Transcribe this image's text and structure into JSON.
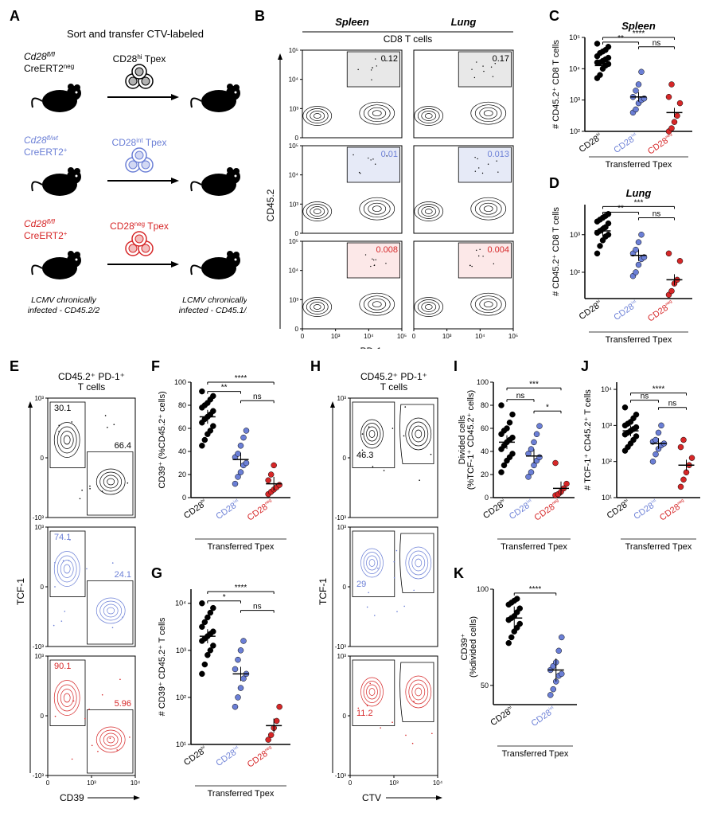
{
  "colors": {
    "black": "#000000",
    "blue": "#6b7fd6",
    "red": "#d62728",
    "grey_fill": "#e8e8e8",
    "blue_fill": "#e6eaf7",
    "red_fill": "#fce8e8",
    "white": "#ffffff"
  },
  "panelA": {
    "title": "Sort and transfer CTV-labeled",
    "rows": [
      {
        "genotype_line1": "Cd28",
        "genotype_sup1": "fl/fl",
        "genotype_line2": "CreERT2",
        "genotype_sup2": "neg",
        "transfer": "CD28",
        "transfer_sup": "hi",
        "transfer_suffix": " Tpex",
        "color": "#000000"
      },
      {
        "genotype_line1": "Cd28",
        "genotype_sup1": "fl/wt",
        "genotype_line2": "CreERT2",
        "genotype_sup2": "+",
        "transfer": "CD28",
        "transfer_sup": "int",
        "transfer_suffix": " Tpex",
        "color": "#6b7fd6"
      },
      {
        "genotype_line1": "Cd28",
        "genotype_sup1": "fl/fl",
        "genotype_line2": "CreERT2",
        "genotype_sup2": "+",
        "transfer": "CD28",
        "transfer_sup": "neg",
        "transfer_suffix": " Tpex",
        "color": "#d62728"
      }
    ],
    "footer_left": "LCMV chronically\ninfected - CD45.2/2",
    "footer_right": "LCMV chronically\ninfected - CD45.1/1"
  },
  "panelB": {
    "col_titles": [
      "Spleen",
      "Lung"
    ],
    "header": "CD8 T cells",
    "y_axis": "CD45.2",
    "x_axis": "PD-1",
    "cells": [
      [
        {
          "value": "0.12",
          "fill": "#e8e8e8",
          "text_color": "#000000"
        },
        {
          "value": "0.17",
          "fill": "#e8e8e8",
          "text_color": "#000000"
        }
      ],
      [
        {
          "value": "0.01",
          "fill": "#e6eaf7",
          "text_color": "#6b7fd6"
        },
        {
          "value": "0.013",
          "fill": "#e6eaf7",
          "text_color": "#6b7fd6"
        }
      ],
      [
        {
          "value": "0.008",
          "fill": "#fce8e8",
          "text_color": "#d62728"
        },
        {
          "value": "0.004",
          "fill": "#fce8e8",
          "text_color": "#d62728"
        }
      ]
    ],
    "x_ticks": [
      "0",
      "10³",
      "10⁴",
      "10⁵"
    ],
    "y_ticks": [
      "0",
      "10³",
      "10⁴",
      "10⁵"
    ]
  },
  "panelC": {
    "title": "Spleen",
    "y_label": "# CD45.2⁺ CD8 T cells",
    "y_ticks": [
      "10²",
      "10³",
      "10⁴",
      "10⁵"
    ],
    "y_scale": "log",
    "ylim": [
      2,
      5
    ],
    "groups": [
      {
        "name": "CD28ʰⁱ",
        "color": "#000000",
        "mean": 4.1,
        "values": [
          3.7,
          3.8,
          4.0,
          4.1,
          4.15,
          4.2,
          4.2,
          4.25,
          4.3,
          4.35,
          4.4,
          4.5,
          4.55,
          4.6,
          4.7,
          4.8
        ]
      },
      {
        "name": "CD28ⁱⁿᵗ",
        "color": "#6b7fd6",
        "mean": 3.1,
        "values": [
          2.6,
          2.7,
          2.9,
          3.0,
          3.05,
          3.1,
          3.3,
          3.5,
          3.9
        ]
      },
      {
        "name": "CD28ⁿᵉᵍ",
        "color": "#d62728",
        "mean": 2.6,
        "values": [
          2.0,
          2.1,
          2.3,
          2.5,
          2.9,
          3.1,
          3.5
        ]
      }
    ],
    "sig": [
      {
        "from": 0,
        "to": 1,
        "label": "**",
        "y": 4.85
      },
      {
        "from": 0,
        "to": 2,
        "label": "****",
        "y": 5.0
      },
      {
        "from": 1,
        "to": 2,
        "label": "ns",
        "y": 4.7
      }
    ],
    "x_axis_title": "Transferred Tpex"
  },
  "panelD": {
    "title": "Lung",
    "y_label": "# CD45.2⁺ CD8 T cells",
    "y_ticks": [
      "10²",
      "10³"
    ],
    "y_scale": "log",
    "ylim": [
      1.3,
      3.8
    ],
    "groups": [
      {
        "name": "CD28ʰⁱ",
        "color": "#000000",
        "mean": 3.1,
        "values": [
          2.5,
          2.7,
          2.85,
          2.95,
          3.0,
          3.05,
          3.1,
          3.15,
          3.2,
          3.3,
          3.35,
          3.4,
          3.45,
          3.5,
          3.55
        ]
      },
      {
        "name": "CD28ⁱⁿᵗ",
        "color": "#6b7fd6",
        "mean": 2.45,
        "values": [
          1.9,
          2.0,
          2.2,
          2.35,
          2.4,
          2.5,
          2.6,
          2.8,
          3.0
        ]
      },
      {
        "name": "CD28ⁿᵉᵍ",
        "color": "#d62728",
        "mean": 1.8,
        "values": [
          1.4,
          1.5,
          1.7,
          1.8,
          2.3,
          2.5
        ]
      }
    ],
    "sig": [
      {
        "from": 0,
        "to": 1,
        "label": "**",
        "y": 3.6
      },
      {
        "from": 0,
        "to": 2,
        "label": "***",
        "y": 3.75
      },
      {
        "from": 1,
        "to": 2,
        "label": "ns",
        "y": 3.45
      }
    ],
    "x_axis_title": "Transferred Tpex"
  },
  "panelE": {
    "title": "CD45.2⁺ PD-1⁺\nT cells",
    "y_axis": "TCF-1",
    "x_axis": "CD39",
    "plots": [
      {
        "color": "#000000",
        "left_val": "30.1",
        "right_val": "66.4"
      },
      {
        "color": "#6b7fd6",
        "left_val": "74.1",
        "right_val": "24.1"
      },
      {
        "color": "#d62728",
        "left_val": "90.1",
        "right_val": "5.96"
      }
    ],
    "x_ticks": [
      "0",
      "10³",
      "10⁴"
    ],
    "y_ticks": [
      "-10³",
      "0",
      "10³"
    ]
  },
  "panelF": {
    "y_label": "CD39⁺ (%CD45.2⁺ cells)",
    "y_ticks": [
      "0",
      "20",
      "40",
      "60",
      "80",
      "100"
    ],
    "ylim": [
      0,
      100
    ],
    "groups": [
      {
        "name": "CD28ʰⁱ",
        "color": "#000000",
        "mean": 70,
        "values": [
          45,
          50,
          55,
          58,
          62,
          65,
          68,
          70,
          72,
          75,
          78,
          80,
          82,
          85,
          88,
          92
        ]
      },
      {
        "name": "CD28ⁱⁿᵗ",
        "color": "#6b7fd6",
        "mean": 33,
        "values": [
          12,
          18,
          22,
          28,
          30,
          35,
          38,
          45,
          52,
          58
        ]
      },
      {
        "name": "CD28ⁿᵉᵍ",
        "color": "#d62728",
        "mean": 12,
        "values": [
          3,
          5,
          7,
          9,
          11,
          15,
          20,
          28
        ]
      }
    ],
    "sig": [
      {
        "from": 0,
        "to": 1,
        "label": "**",
        "y": 92
      },
      {
        "from": 0,
        "to": 2,
        "label": "****",
        "y": 100
      },
      {
        "from": 1,
        "to": 2,
        "label": "ns",
        "y": 84
      }
    ],
    "x_axis_title": "Transferred Tpex"
  },
  "panelG": {
    "y_label": "# CD39⁺ CD45.2⁺ T cells",
    "y_ticks": [
      "10¹",
      "10²",
      "10³",
      "10⁴"
    ],
    "y_scale": "log",
    "ylim": [
      1,
      4.3
    ],
    "groups": [
      {
        "name": "CD28ʰⁱ",
        "color": "#000000",
        "mean": 3.3,
        "values": [
          2.5,
          2.7,
          2.9,
          3.0,
          3.1,
          3.2,
          3.25,
          3.3,
          3.35,
          3.4,
          3.5,
          3.6,
          3.7,
          3.8,
          3.9,
          4.0
        ]
      },
      {
        "name": "CD28ⁱⁿᵗ",
        "color": "#6b7fd6",
        "mean": 2.5,
        "values": [
          1.8,
          2.0,
          2.2,
          2.4,
          2.5,
          2.6,
          2.8,
          3.0,
          3.2
        ]
      },
      {
        "name": "CD28ⁿᵉᵍ",
        "color": "#d62728",
        "mean": 1.4,
        "values": [
          1.1,
          1.2,
          1.35,
          1.5,
          1.8
        ]
      }
    ],
    "sig": [
      {
        "from": 0,
        "to": 1,
        "label": "*",
        "y": 4.05
      },
      {
        "from": 0,
        "to": 2,
        "label": "****",
        "y": 4.25
      },
      {
        "from": 1,
        "to": 2,
        "label": "ns",
        "y": 3.85
      }
    ],
    "x_axis_title": "Transferred Tpex"
  },
  "panelH": {
    "title": "CD45.2⁺ PD-1⁺\nT cells",
    "y_axis": "TCF-1",
    "x_axis": "CTV",
    "plots": [
      {
        "color": "#000000",
        "val": "46.3"
      },
      {
        "color": "#6b7fd6",
        "val": "29"
      },
      {
        "color": "#d62728",
        "val": "11.2"
      }
    ],
    "x_ticks": [
      "0",
      "10³",
      "10⁴"
    ],
    "y_ticks": [
      "-10³",
      "0",
      "10³"
    ]
  },
  "panelI": {
    "y_label": "Divided cells\n(%TCF-1⁺ CD45.2⁺ cells)",
    "y_ticks": [
      "0",
      "20",
      "40",
      "60",
      "80",
      "100"
    ],
    "ylim": [
      0,
      100
    ],
    "groups": [
      {
        "name": "CD28ʰⁱ",
        "color": "#000000",
        "mean": 48,
        "values": [
          22,
          28,
          32,
          35,
          38,
          42,
          45,
          48,
          50,
          52,
          55,
          58,
          60,
          65,
          72,
          80
        ]
      },
      {
        "name": "CD28ⁱⁿᵗ",
        "color": "#6b7fd6",
        "mean": 36,
        "values": [
          18,
          22,
          28,
          32,
          35,
          38,
          42,
          48,
          55,
          62
        ]
      },
      {
        "name": "CD28ⁿᵉᵍ",
        "color": "#d62728",
        "mean": 8,
        "values": [
          2,
          3,
          5,
          8,
          12,
          30
        ]
      }
    ],
    "sig": [
      {
        "from": 0,
        "to": 1,
        "label": "ns",
        "y": 85
      },
      {
        "from": 0,
        "to": 2,
        "label": "***",
        "y": 95
      },
      {
        "from": 1,
        "to": 2,
        "label": "*",
        "y": 75
      }
    ],
    "x_axis_title": "Transferred Tpex"
  },
  "panelJ": {
    "y_label": "# TCF-1⁺ CD45.2⁺ T cells",
    "y_ticks": [
      "10¹",
      "10²",
      "10³",
      "10⁴"
    ],
    "y_scale": "log",
    "ylim": [
      1,
      4.2
    ],
    "groups": [
      {
        "name": "CD28ʰⁱ",
        "color": "#000000",
        "mean": 2.85,
        "values": [
          2.3,
          2.4,
          2.5,
          2.6,
          2.7,
          2.75,
          2.8,
          2.85,
          2.9,
          2.95,
          3.0,
          3.05,
          3.1,
          3.2,
          3.3,
          3.5
        ]
      },
      {
        "name": "CD28ⁱⁿᵗ",
        "color": "#6b7fd6",
        "mean": 2.5,
        "values": [
          2.0,
          2.2,
          2.35,
          2.45,
          2.5,
          2.55,
          2.6,
          2.8,
          3.0
        ]
      },
      {
        "name": "CD28ⁿᵉᵍ",
        "color": "#d62728",
        "mean": 1.9,
        "values": [
          1.3,
          1.5,
          1.7,
          1.9,
          2.1,
          2.4,
          2.6
        ]
      }
    ],
    "sig": [
      {
        "from": 0,
        "to": 1,
        "label": "ns",
        "y": 3.7
      },
      {
        "from": 0,
        "to": 2,
        "label": "****",
        "y": 3.9
      },
      {
        "from": 1,
        "to": 2,
        "label": "ns",
        "y": 3.5
      }
    ],
    "x_axis_title": "Transferred Tpex"
  },
  "panelK": {
    "y_label": "CD39⁺\n(%divided cells)",
    "y_ticks": [
      "50",
      "100"
    ],
    "ylim": [
      40,
      100
    ],
    "groups": [
      {
        "name": "CD28ʰⁱ",
        "color": "#000000",
        "mean": 85,
        "values": [
          72,
          75,
          78,
          80,
          82,
          84,
          85,
          86,
          88,
          90,
          92,
          93,
          94,
          95
        ]
      },
      {
        "name": "CD28ⁱⁿᵗ",
        "color": "#6b7fd6",
        "mean": 58,
        "values": [
          45,
          48,
          52,
          55,
          56,
          58,
          60,
          62,
          68,
          75
        ]
      }
    ],
    "sig": [
      {
        "from": 0,
        "to": 1,
        "label": "****",
        "y": 98
      }
    ],
    "x_axis_title": "Transferred Tpex"
  }
}
